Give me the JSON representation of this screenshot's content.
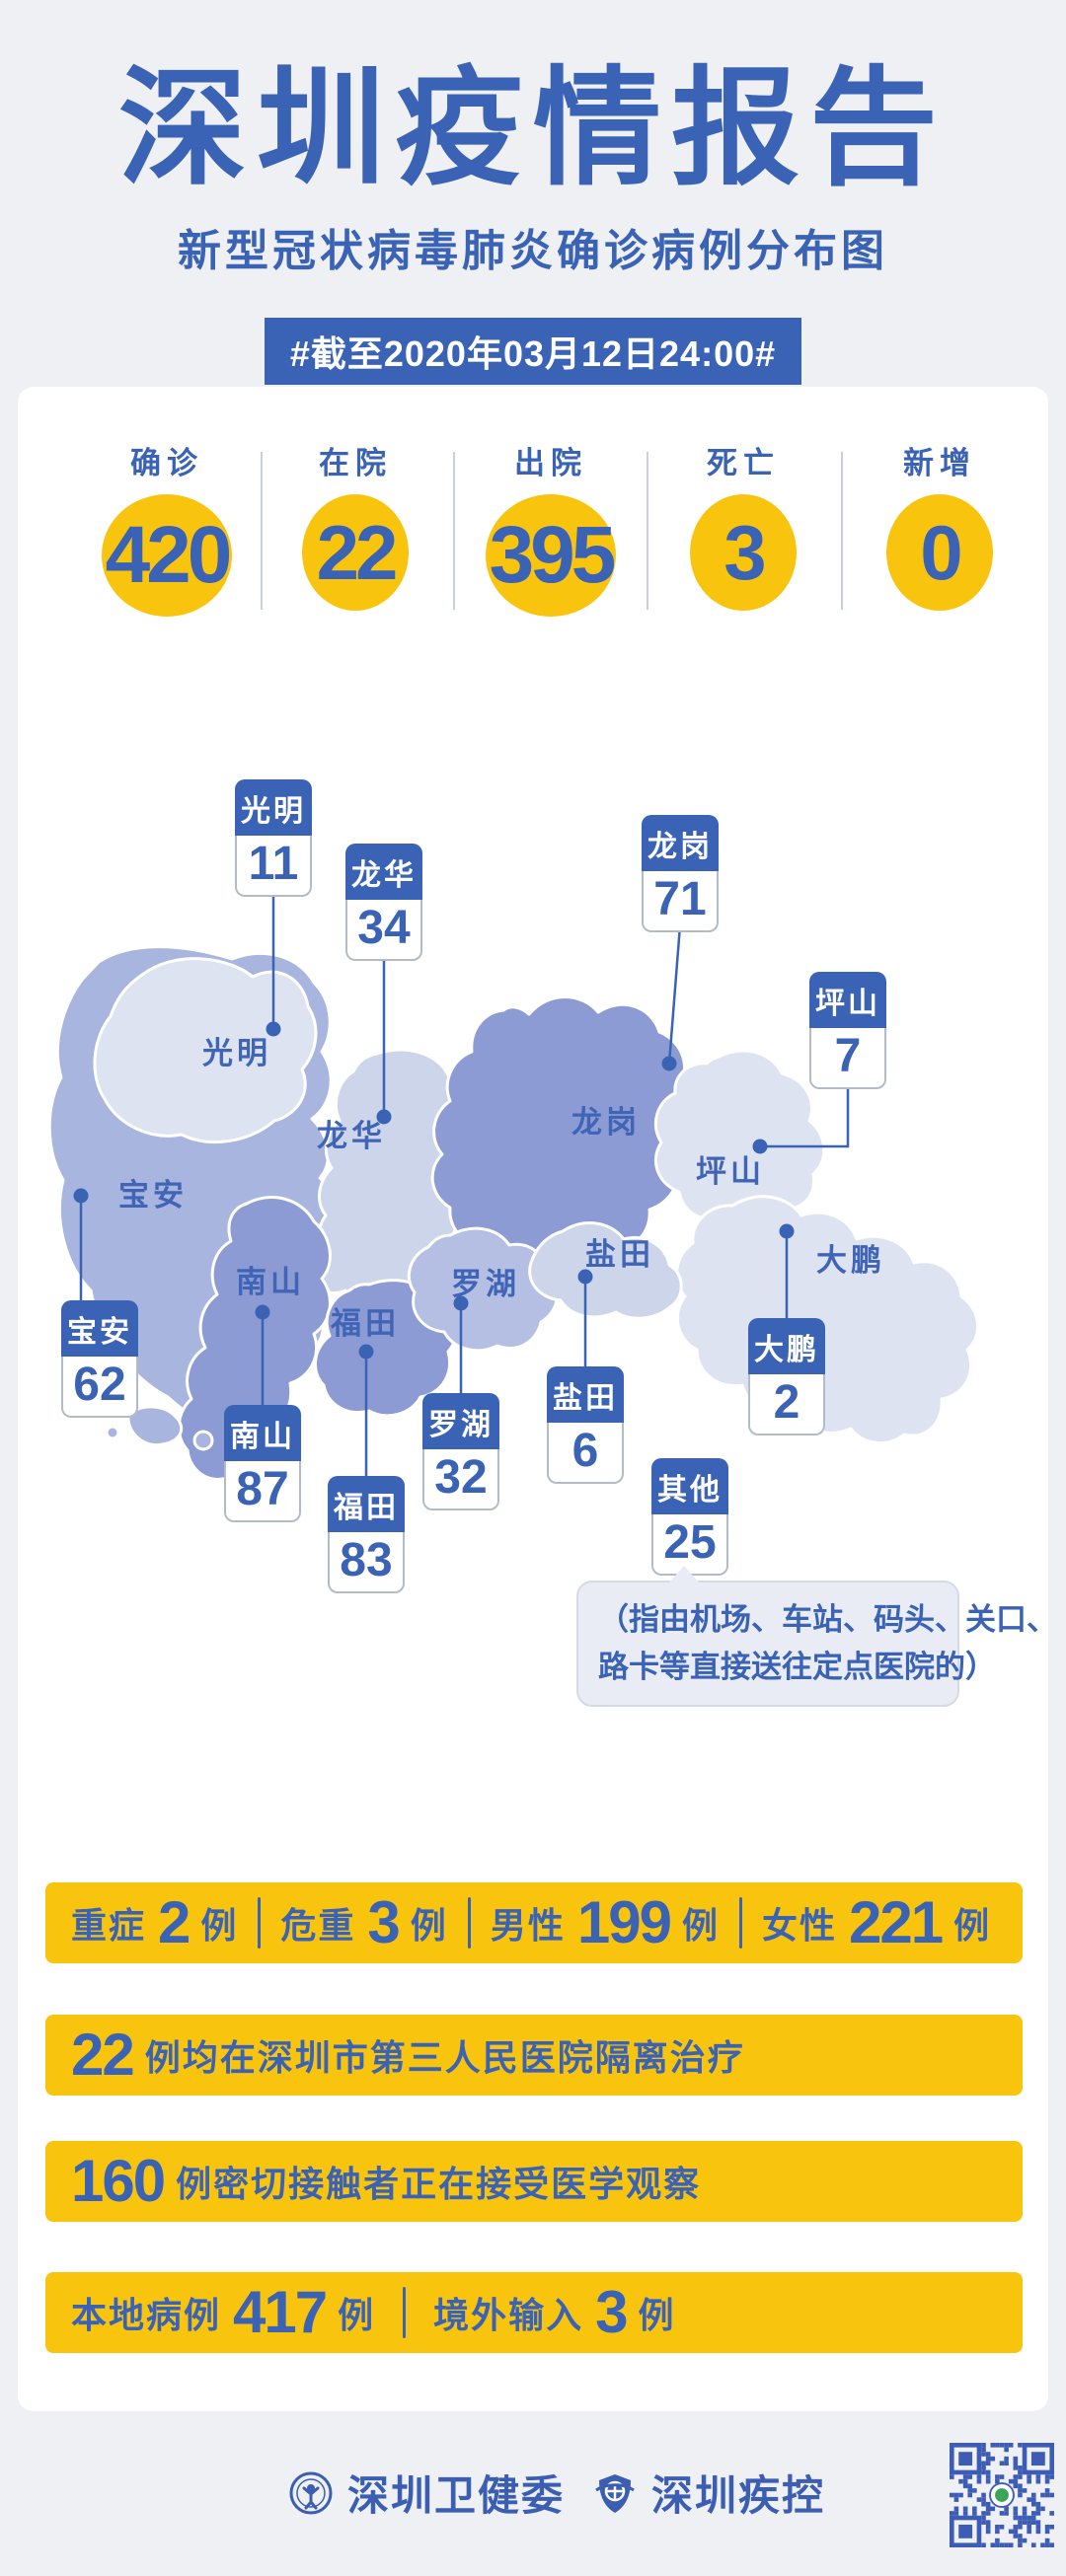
{
  "header": {
    "title": "深圳疫情报告",
    "subtitle": "新型冠状病毒肺炎确诊病例分布图",
    "date_banner": "#截至2020年03月12日24:00#"
  },
  "summary": {
    "items": [
      {
        "label": "确诊",
        "value": "420"
      },
      {
        "label": "在院",
        "value": "22"
      },
      {
        "label": "出院",
        "value": "395"
      },
      {
        "label": "死亡",
        "value": "3"
      },
      {
        "label": "新增",
        "value": "0"
      }
    ]
  },
  "map": {
    "districts": [
      {
        "name": "光明",
        "value": "11"
      },
      {
        "name": "龙华",
        "value": "34"
      },
      {
        "name": "龙岗",
        "value": "71"
      },
      {
        "name": "坪山",
        "value": "7"
      },
      {
        "name": "宝安",
        "value": "62"
      },
      {
        "name": "南山",
        "value": "87"
      },
      {
        "name": "福田",
        "value": "83"
      },
      {
        "name": "罗湖",
        "value": "32"
      },
      {
        "name": "盐田",
        "value": "6"
      },
      {
        "name": "大鹏",
        "value": "2"
      },
      {
        "name": "其他",
        "value": "25"
      }
    ],
    "note_line1": "（指由机场、车站、码头、关口、",
    "note_line2": "路卡等直接送往定点医院的）"
  },
  "bars": {
    "clinical": {
      "severe_label": "重症",
      "severe_value": "2",
      "critical_label": "危重",
      "critical_value": "3",
      "male_label": "男性",
      "male_value": "199",
      "female_label": "女性",
      "female_value": "221",
      "unit": "例"
    },
    "hospital": {
      "value": "22",
      "text": "例均在深圳市第三人民医院隔离治疗"
    },
    "observation": {
      "value": "160",
      "text": "例密切接触者正在接受医学观察"
    },
    "origin": {
      "local_label": "本地病例",
      "local_value": "417",
      "imported_label": "境外输入",
      "imported_value": "3",
      "unit": "例"
    }
  },
  "footer": {
    "org_health": "深圳卫健委",
    "org_cdc": "深圳疾控"
  },
  "colors": {
    "primary_blue": "#3a62b5",
    "accent_yellow": "#f9c40e"
  }
}
